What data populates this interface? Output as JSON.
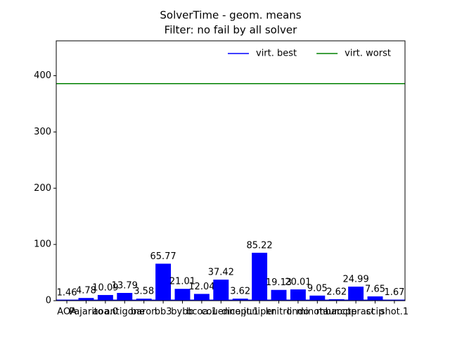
{
  "chart_data": {
    "type": "bar",
    "title": "SolverTime - geom. means",
    "subtitle": "Filter: no fail by all solver",
    "categories": [
      "AOA",
      "Pajarito",
      "aoa.0",
      "antigone",
      "baron",
      "bb3",
      "bybb",
      "bcoa.1",
      "couenne",
      "dicopt.1",
      "juniper",
      "knitro",
      "lindo",
      "minotaur",
      "mbarcpp",
      "octeract",
      "scip",
      "shot.1"
    ],
    "values": [
      1.46,
      4.78,
      10.09,
      13.79,
      3.58,
      65.77,
      21.01,
      12.04,
      37.42,
      3.62,
      85.22,
      19.13,
      20.01,
      9.05,
      2.62,
      24.99,
      7.65,
      1.67
    ],
    "color": "#0000ff",
    "lines": [
      {
        "name": "virt. best",
        "color": "#0000ff",
        "value": 1.0
      },
      {
        "name": "virt. worst",
        "color": "#008000",
        "value": 386
      }
    ],
    "ylim": [
      0,
      462
    ],
    "yticks": [
      0,
      100,
      200,
      300,
      400
    ],
    "legend": "upper right"
  }
}
